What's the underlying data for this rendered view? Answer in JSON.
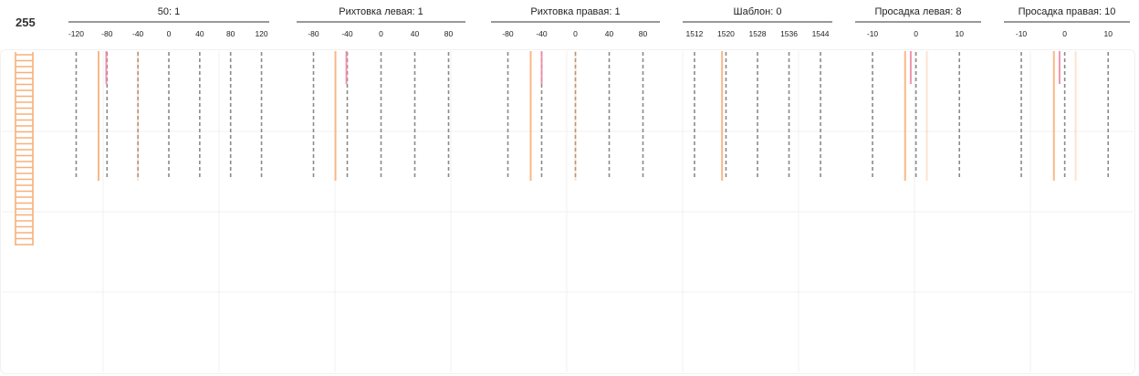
{
  "counter": "255",
  "colors": {
    "grid_dashed": "#8a8a8a",
    "grid_bg": "#f0f0f0",
    "orange": "#f7b07a",
    "pink": "#f08aa4",
    "ladder": "#f7b07a"
  },
  "chart_data": [
    {
      "type": "line",
      "title": "50: 1",
      "xlim": [
        -130,
        130
      ],
      "ticks": [
        -120,
        -80,
        -40,
        0,
        40,
        80,
        120
      ],
      "series": [
        {
          "color": "orange",
          "x": -91,
          "extent": "long"
        },
        {
          "color": "pink",
          "x": -81,
          "extent": "short"
        },
        {
          "color": "orange",
          "x": -40,
          "extent": "long",
          "faint": true
        }
      ]
    },
    {
      "type": "line",
      "title": "Рихтовка левая: 1",
      "xlim": [
        -100,
        100
      ],
      "ticks": [
        -80,
        -40,
        0,
        40,
        80
      ],
      "series": [
        {
          "color": "orange",
          "x": -54,
          "extent": "long"
        },
        {
          "color": "pink",
          "x": -41,
          "extent": "short"
        }
      ]
    },
    {
      "type": "line",
      "title": "Рихтовка правая: 1",
      "xlim": [
        -100,
        100
      ],
      "ticks": [
        -80,
        -40,
        0,
        40,
        80
      ],
      "series": [
        {
          "color": "orange",
          "x": -53,
          "extent": "long"
        },
        {
          "color": "pink",
          "x": -40,
          "extent": "short"
        },
        {
          "color": "orange",
          "x": 0,
          "extent": "long",
          "faint": true
        }
      ]
    },
    {
      "type": "line",
      "title": "Шаблон: 0",
      "xlim": [
        1509,
        1547
      ],
      "ticks": [
        1512,
        1520,
        1528,
        1536,
        1544
      ],
      "series": [
        {
          "color": "orange",
          "x": 1519,
          "extent": "long"
        }
      ]
    },
    {
      "type": "line",
      "title": "Просадка левая: 8",
      "xlim": [
        -14,
        15
      ],
      "ticks": [
        -10,
        0,
        10
      ],
      "series": [
        {
          "color": "orange",
          "x": -2.5,
          "extent": "long"
        },
        {
          "color": "pink",
          "x": -1.2,
          "extent": "short"
        },
        {
          "color": "orange",
          "x": 2.5,
          "extent": "long",
          "faint": true
        }
      ]
    },
    {
      "type": "line",
      "title": "Просадка правая: 10",
      "xlim": [
        -14,
        15
      ],
      "ticks": [
        -10,
        0,
        10
      ],
      "series": [
        {
          "color": "orange",
          "x": -2.5,
          "extent": "long"
        },
        {
          "color": "pink",
          "x": -1.2,
          "extent": "short"
        },
        {
          "color": "orange",
          "x": 2.5,
          "extent": "long",
          "faint": true
        }
      ]
    }
  ]
}
